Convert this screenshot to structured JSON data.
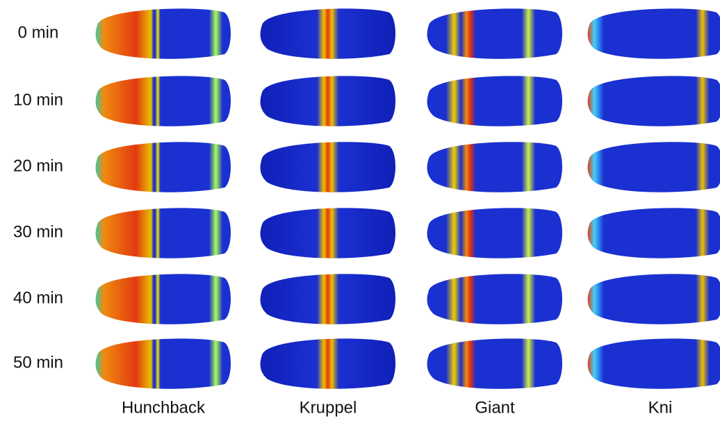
{
  "row_labels": [
    "0 min",
    "10 min",
    "20 min",
    "30 min",
    "40 min",
    "50 min"
  ],
  "column_labels": [
    "Hunchback",
    "Kruppel",
    "Giant",
    "Kni"
  ]
}
